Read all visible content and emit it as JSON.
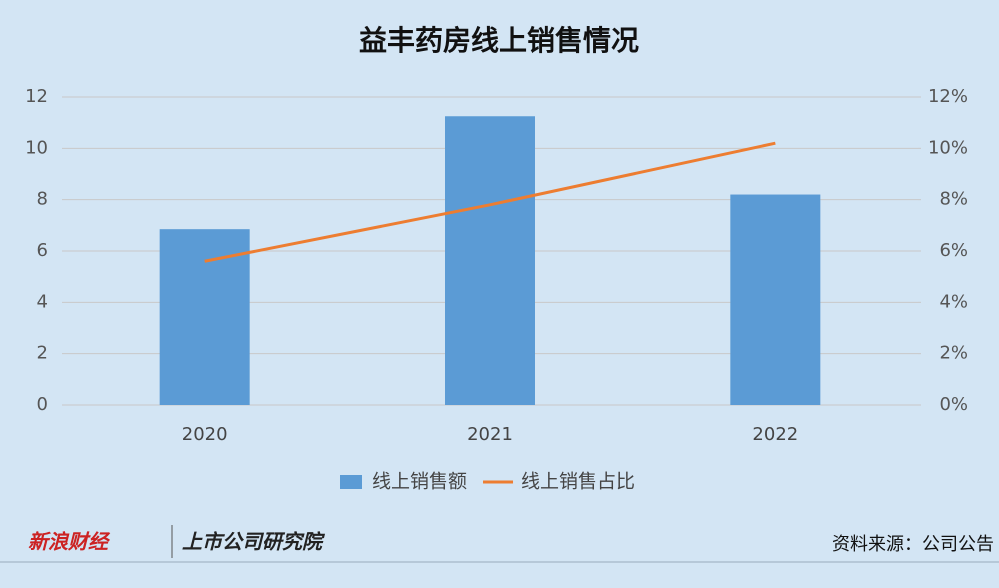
{
  "chart_data": {
    "type": "bar_line",
    "title": "益丰药房线上销售情况",
    "categories": [
      "2020",
      "2021",
      "2022"
    ],
    "series": [
      {
        "name": "线上销售额",
        "type": "bar",
        "color": "#5b9bd5",
        "values": [
          6.85,
          11.25,
          8.2
        ]
      },
      {
        "name": "线上销售占比",
        "type": "line",
        "color": "#ed7d31",
        "axis": "y2",
        "values": [
          5.6,
          7.8,
          10.2
        ]
      }
    ],
    "ylim": [
      0,
      12
    ],
    "yticks": [
      0,
      2,
      4,
      6,
      8,
      10,
      12
    ],
    "y2lim": [
      0,
      12
    ],
    "y2ticks": [
      {
        "value": 0,
        "label": "0%"
      },
      {
        "value": 2,
        "label": "2%"
      },
      {
        "value": 4,
        "label": "4%"
      },
      {
        "value": 6,
        "label": "6%"
      },
      {
        "value": 8,
        "label": "8%"
      },
      {
        "value": 10,
        "label": "10%"
      },
      {
        "value": 12,
        "label": "12%"
      }
    ],
    "grid": true,
    "legend": "bottom"
  },
  "footer": {
    "brand_left": "新浪财经",
    "brand_right": "上市公司研究院",
    "source": "资料来源：公司公告"
  }
}
